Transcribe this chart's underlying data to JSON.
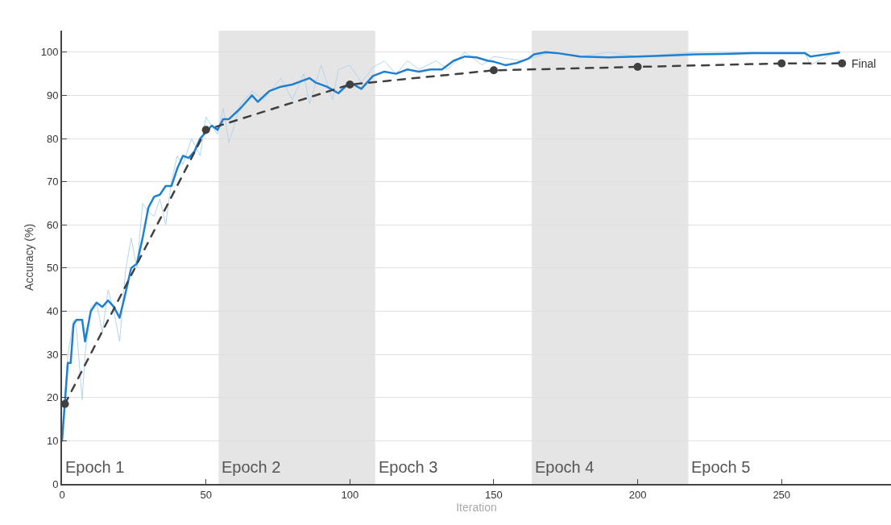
{
  "chart_data": {
    "type": "line",
    "xlabel": "Iteration",
    "ylabel": "Accuracy (%)",
    "xlim": [
      0,
      288
    ],
    "ylim": [
      0,
      105
    ],
    "xticks": [
      0,
      50,
      100,
      150,
      200,
      250
    ],
    "yticks": [
      0,
      10,
      20,
      30,
      40,
      50,
      60,
      70,
      80,
      90,
      100
    ],
    "grid": "y",
    "series": [
      {
        "color": "#b5d5ee",
        "marker": "none",
        "line_style": "solid",
        "x": [
          0,
          2,
          4,
          5,
          7,
          8,
          10,
          12,
          14,
          16,
          18,
          20,
          22,
          24,
          26,
          28,
          30,
          32,
          34,
          36,
          38,
          40,
          42,
          45,
          48,
          50,
          52,
          54,
          56,
          58,
          62,
          66,
          70,
          76,
          80,
          84,
          86,
          90,
          94,
          96,
          100,
          104,
          108,
          112,
          116,
          120,
          124,
          130,
          134,
          140,
          146,
          150,
          160,
          170,
          180,
          190,
          200,
          220,
          240,
          258,
          260,
          270
        ],
        "values": [
          10,
          30,
          38,
          36,
          19.5,
          30,
          41,
          42,
          35,
          45,
          40,
          33,
          49,
          57,
          50,
          65,
          63,
          62,
          66,
          60,
          70,
          76,
          74,
          80,
          76,
          85,
          83,
          81,
          87,
          79,
          88,
          91,
          89,
          94,
          89,
          95,
          88,
          97,
          89,
          96,
          97,
          93,
          96.5,
          98,
          95,
          98,
          96,
          98,
          96,
          100,
          97,
          99,
          98,
          100,
          99,
          100,
          99,
          100,
          100,
          100,
          97,
          100.5
        ]
      },
      {
        "color": "#1f80d0",
        "marker": "none",
        "line_style": "solid",
        "x": [
          0,
          2,
          3,
          4,
          5,
          7,
          8,
          10,
          12,
          14,
          16,
          18,
          20,
          22,
          24,
          26,
          28,
          30,
          32,
          34,
          36,
          38,
          40,
          42,
          44,
          46,
          48,
          50,
          52,
          54,
          56,
          58,
          62,
          66,
          68,
          72,
          76,
          80,
          84,
          86,
          88,
          92,
          96,
          100,
          104,
          108,
          112,
          116,
          120,
          124,
          128,
          132,
          136,
          140,
          144,
          148,
          150,
          154,
          158,
          162,
          164,
          168,
          172,
          180,
          190,
          200,
          210,
          220,
          230,
          240,
          250,
          258,
          260,
          270
        ],
        "values": [
          10,
          28,
          28,
          37,
          38,
          38,
          33,
          40,
          42,
          41,
          42.5,
          41,
          38.5,
          44,
          50,
          51,
          57,
          64,
          66.5,
          67,
          69,
          69,
          73,
          76,
          75.5,
          77,
          80,
          81.5,
          83,
          82,
          84.5,
          84.5,
          87,
          90,
          88.5,
          91,
          92,
          92.5,
          93.5,
          94,
          93,
          92,
          90.5,
          93,
          91.5,
          94.5,
          95.5,
          95,
          96,
          95.5,
          96,
          96,
          98,
          99,
          98.8,
          98,
          97.8,
          97,
          97.5,
          98.5,
          99.5,
          100,
          99.8,
          99,
          98.8,
          99,
          99.2,
          99.5,
          99.6,
          99.8,
          99.8,
          99.8,
          99,
          99.9
        ]
      },
      {
        "color": "#404040",
        "marker": "circle",
        "line_style": "dashed",
        "x": [
          1,
          50,
          100,
          150,
          200,
          250,
          271
        ],
        "values": [
          18.5,
          82,
          92.5,
          95.8,
          96.6,
          97.4,
          97.4
        ]
      }
    ],
    "bands": [
      {
        "axis": "x",
        "from": 54.4,
        "to": 108.8,
        "label": "Epoch 2",
        "color": "#e5e5e5"
      },
      {
        "axis": "x",
        "from": 163.2,
        "to": 217.6,
        "label": "Epoch 4",
        "color": "#e5e5e5"
      }
    ],
    "annotations": [
      {
        "text": "Final",
        "x": 271,
        "y": 97.4
      },
      "Epoch 1",
      "Epoch 3",
      "Epoch 5"
    ]
  }
}
